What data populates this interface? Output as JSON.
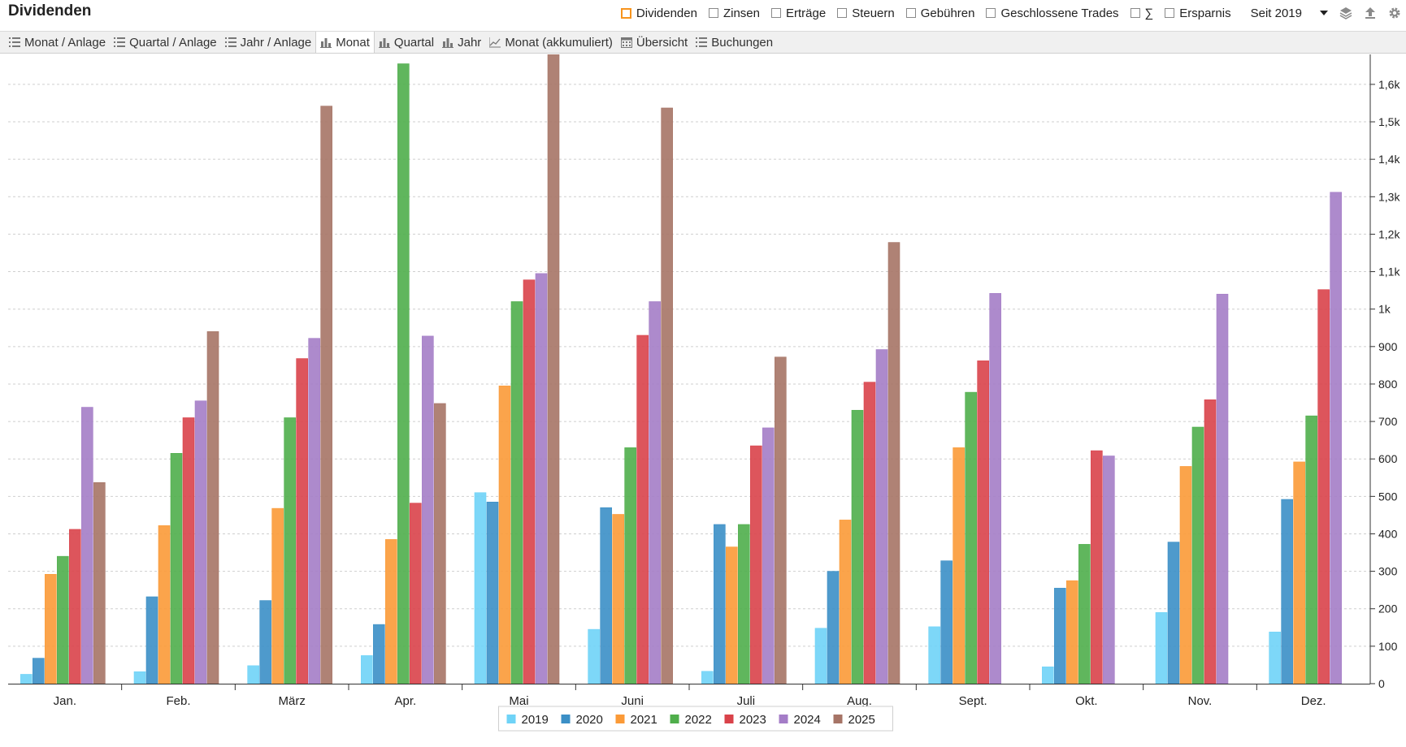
{
  "header": {
    "title": "Dividenden",
    "filters": [
      {
        "label": "Dividenden",
        "checked": true
      },
      {
        "label": "Zinsen",
        "checked": false
      },
      {
        "label": "Erträge",
        "checked": false
      },
      {
        "label": "Steuern",
        "checked": false
      },
      {
        "label": "Gebühren",
        "checked": false
      },
      {
        "label": "Geschlossene Trades",
        "checked": false
      },
      {
        "label": "∑",
        "checked": false
      },
      {
        "label": "Ersparnis",
        "checked": false
      }
    ],
    "period": "Seit 2019",
    "icons": [
      "layers-icon",
      "upload-icon",
      "gear-icon"
    ]
  },
  "tabs": [
    {
      "label": "Monat / Anlage",
      "icon": "list-icon",
      "active": false
    },
    {
      "label": "Quartal / Anlage",
      "icon": "list-icon",
      "active": false
    },
    {
      "label": "Jahr / Anlage",
      "icon": "list-icon",
      "active": false
    },
    {
      "label": "Monat",
      "icon": "bar-chart-icon",
      "active": true
    },
    {
      "label": "Quartal",
      "icon": "bar-chart-icon",
      "active": false
    },
    {
      "label": "Jahr",
      "icon": "bar-chart-icon",
      "active": false
    },
    {
      "label": "Monat (akkumuliert)",
      "icon": "line-chart-icon",
      "active": false
    },
    {
      "label": "Übersicht",
      "icon": "calendar-icon",
      "active": false
    },
    {
      "label": "Buchungen",
      "icon": "list-icon",
      "active": false
    }
  ],
  "chart_data": {
    "type": "bar",
    "categories": [
      "Jan.",
      "Feb.",
      "März",
      "Apr.",
      "Mai",
      "Juni",
      "Juli",
      "Aug.",
      "Sept.",
      "Okt.",
      "Nov.",
      "Dez."
    ],
    "series": [
      {
        "name": "2019",
        "color": "#6fd3f7",
        "values": [
          25,
          32,
          48,
          75,
          510,
          145,
          33,
          148,
          152,
          45,
          190,
          138
        ]
      },
      {
        "name": "2020",
        "color": "#3b8fc6",
        "values": [
          68,
          232,
          222,
          158,
          485,
          470,
          425,
          300,
          328,
          255,
          378,
          492
        ]
      },
      {
        "name": "2021",
        "color": "#fb9a37",
        "values": [
          292,
          422,
          468,
          385,
          795,
          452,
          365,
          437,
          630,
          275,
          580,
          592
        ]
      },
      {
        "name": "2022",
        "color": "#4fae4b",
        "values": [
          340,
          615,
          710,
          1655,
          1020,
          630,
          425,
          730,
          778,
          372,
          685,
          715
        ]
      },
      {
        "name": "2023",
        "color": "#d9424a",
        "values": [
          412,
          710,
          868,
          482,
          1078,
          930,
          635,
          805,
          862,
          622,
          758,
          1052
        ]
      },
      {
        "name": "2024",
        "color": "#a47dc7",
        "values": [
          738,
          755,
          922,
          928,
          1095,
          1020,
          683,
          892,
          1042,
          608,
          1040,
          1312
        ]
      },
      {
        "name": "2025",
        "color": "#a67466",
        "values": [
          537,
          940,
          1542,
          748,
          1680,
          1537,
          872,
          1178,
          null,
          null,
          null,
          null
        ]
      }
    ],
    "y_ticks": [
      {
        "value": 0,
        "label": "0"
      },
      {
        "value": 100,
        "label": "100"
      },
      {
        "value": 200,
        "label": "200"
      },
      {
        "value": 300,
        "label": "300"
      },
      {
        "value": 400,
        "label": "400"
      },
      {
        "value": 500,
        "label": "500"
      },
      {
        "value": 600,
        "label": "600"
      },
      {
        "value": 700,
        "label": "700"
      },
      {
        "value": 800,
        "label": "800"
      },
      {
        "value": 900,
        "label": "900"
      },
      {
        "value": 1000,
        "label": "1k"
      },
      {
        "value": 1100,
        "label": "1,1k"
      },
      {
        "value": 1200,
        "label": "1,2k"
      },
      {
        "value": 1300,
        "label": "1,3k"
      },
      {
        "value": 1400,
        "label": "1,4k"
      },
      {
        "value": 1500,
        "label": "1,5k"
      },
      {
        "value": 1600,
        "label": "1,6k"
      }
    ],
    "ylim": [
      0,
      1680
    ],
    "y_axis_side": "right",
    "grid": true,
    "legend_position": "bottom-center"
  }
}
